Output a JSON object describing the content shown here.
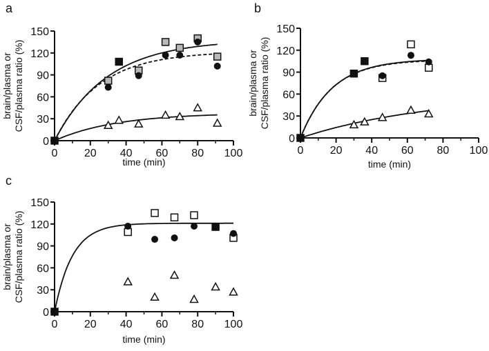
{
  "chart_data": [
    {
      "panel_label": "a",
      "type": "scatter",
      "xlabel": "time (min)",
      "ylabel_lines": [
        "brain/plasma or",
        "CSF/plasma ratio (%)"
      ],
      "xlim": [
        0,
        100
      ],
      "ylim": [
        0,
        150
      ],
      "xticks": [
        0,
        20,
        40,
        60,
        80,
        100
      ],
      "yticks": [
        0,
        30,
        60,
        90,
        120,
        150
      ],
      "grid": false,
      "series": [
        {
          "marker": "square-filled",
          "color": "#111111",
          "points": [
            [
              0,
              0
            ],
            [
              36,
              108
            ]
          ]
        },
        {
          "marker": "square-gray",
          "color": "#b8b8b8",
          "points": [
            [
              30,
              82
            ],
            [
              47,
              96
            ],
            [
              62,
              135
            ],
            [
              70,
              127
            ],
            [
              80,
              140
            ],
            [
              91,
              115
            ]
          ]
        },
        {
          "marker": "circle-filled",
          "color": "#111111",
          "points": [
            [
              30,
              73
            ],
            [
              47,
              89
            ],
            [
              62,
              117
            ],
            [
              70,
              117
            ],
            [
              80,
              135
            ],
            [
              91,
              102
            ]
          ]
        },
        {
          "marker": "triangle-open",
          "color": "#111111",
          "points": [
            [
              30,
              21
            ],
            [
              36,
              28
            ],
            [
              47,
              23
            ],
            [
              62,
              35
            ],
            [
              70,
              33
            ],
            [
              80,
              45
            ],
            [
              91,
              24
            ]
          ]
        }
      ],
      "fit_curves": [
        {
          "style": "solid",
          "plateau": 138,
          "rate": 0.034,
          "x_range": [
            0,
            91
          ]
        },
        {
          "style": "dashed",
          "plateau": 122,
          "rate": 0.04,
          "x_range": [
            0,
            91
          ]
        },
        {
          "style": "solid",
          "plateau": 38,
          "rate": 0.029,
          "x_range": [
            0,
            91
          ]
        }
      ]
    },
    {
      "panel_label": "b",
      "type": "scatter",
      "xlabel": "time (min)",
      "ylabel_lines": [
        "brain/plasma or",
        "CSF/plasma ratio (%)"
      ],
      "xlim": [
        0,
        100
      ],
      "ylim": [
        0,
        150
      ],
      "xticks": [
        0,
        20,
        40,
        60,
        80,
        100
      ],
      "yticks": [
        0,
        30,
        60,
        90,
        120,
        150
      ],
      "grid": false,
      "series": [
        {
          "marker": "square-filled",
          "color": "#111111",
          "points": [
            [
              0,
              0
            ],
            [
              30,
              88
            ],
            [
              36,
              105
            ]
          ]
        },
        {
          "marker": "square-open",
          "color": "#111111",
          "points": [
            [
              46,
              82
            ],
            [
              62,
              128
            ],
            [
              72,
              96
            ]
          ]
        },
        {
          "marker": "circle-filled",
          "color": "#111111",
          "points": [
            [
              46,
              85
            ],
            [
              62,
              113
            ],
            [
              72,
              104
            ]
          ]
        },
        {
          "marker": "triangle-open",
          "color": "#111111",
          "points": [
            [
              30,
              18
            ],
            [
              36,
              22
            ],
            [
              46,
              28
            ],
            [
              62,
              38
            ],
            [
              72,
              33
            ]
          ]
        }
      ],
      "fit_curves": [
        {
          "style": "dashed",
          "plateau": 107,
          "rate": 0.057,
          "x_range": [
            0,
            72
          ]
        },
        {
          "style": "solid",
          "plateau": 108,
          "rate": 0.056,
          "x_range": [
            0,
            72
          ]
        },
        {
          "style": "solid",
          "plateau": 60,
          "rate": 0.0135,
          "x_range": [
            0,
            72
          ]
        }
      ]
    },
    {
      "panel_label": "c",
      "type": "scatter",
      "xlabel": "time (min)",
      "ylabel_lines": [
        "brain/plasma or",
        "CSF/plasma ratio (%)"
      ],
      "xlim": [
        0,
        100
      ],
      "ylim": [
        0,
        150
      ],
      "xticks": [
        0,
        20,
        40,
        60,
        80,
        100
      ],
      "yticks": [
        0,
        30,
        60,
        90,
        120,
        150
      ],
      "grid": false,
      "series": [
        {
          "marker": "square-open",
          "color": "#111111",
          "points": [
            [
              41,
              109
            ],
            [
              56,
              135
            ],
            [
              67,
              129
            ],
            [
              78,
              132
            ],
            [
              100,
              101
            ]
          ]
        },
        {
          "marker": "circle-filled",
          "color": "#111111",
          "points": [
            [
              41,
              117
            ],
            [
              56,
              99
            ],
            [
              67,
              101
            ],
            [
              78,
              117
            ],
            [
              100,
              107
            ]
          ]
        },
        {
          "marker": "square-filled",
          "color": "#111111",
          "points": [
            [
              0,
              0
            ],
            [
              90,
              116
            ]
          ]
        },
        {
          "marker": "triangle-open",
          "color": "#111111",
          "points": [
            [
              41,
              41
            ],
            [
              56,
              20
            ],
            [
              67,
              50
            ],
            [
              78,
              17
            ],
            [
              90,
              34
            ],
            [
              100,
              27
            ]
          ]
        }
      ],
      "fit_curves": [
        {
          "style": "solid",
          "plateau": 121,
          "rate": 0.1,
          "x_range": [
            0,
            100
          ]
        }
      ]
    }
  ]
}
